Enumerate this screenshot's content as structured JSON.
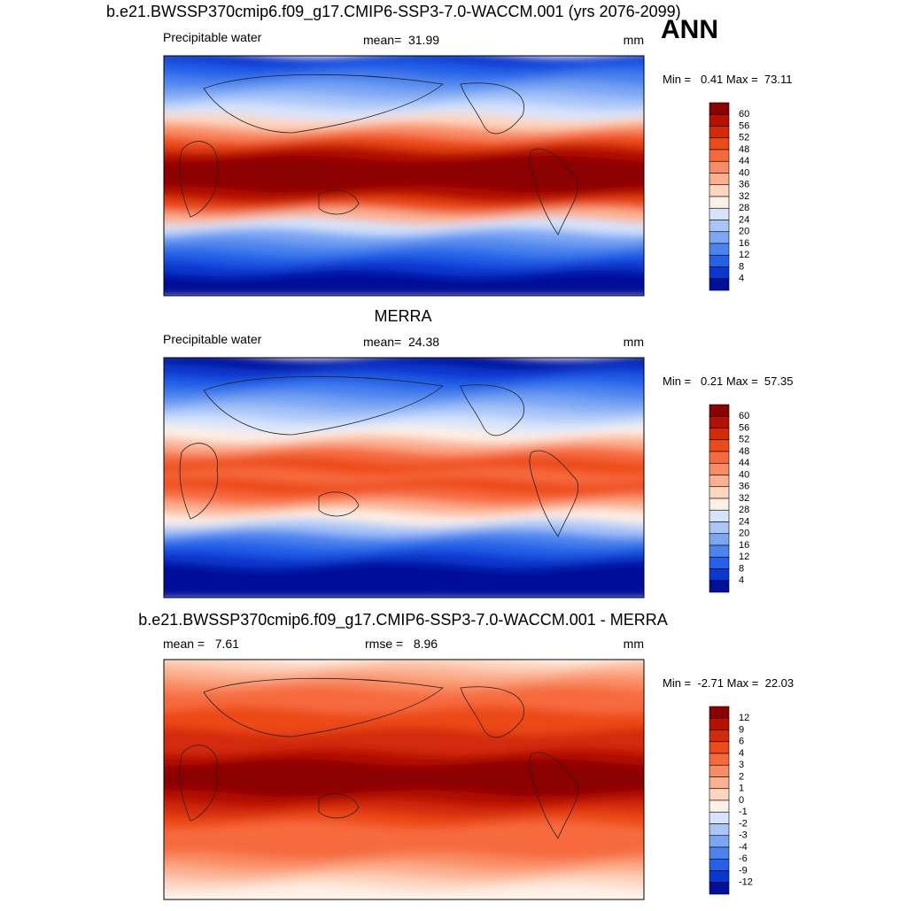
{
  "season": "ANN",
  "panels": [
    {
      "title": "b.e21.BWSSP370cmip6.f09_g17.CMIP6-SSP3-7.0-WACCM.001 (yrs 2076-2099)",
      "left_label": "Precipitable water",
      "center_label": "mean=  31.99",
      "units": "mm",
      "min_max": "Min =   0.41 Max =  73.11",
      "colorbar": {
        "levels": [
          60,
          56,
          52,
          48,
          44,
          40,
          36,
          32,
          28,
          24,
          20,
          16,
          12,
          8,
          4
        ],
        "colors": [
          "#8b0000",
          "#b51000",
          "#d42a08",
          "#ec4a18",
          "#f66a3c",
          "#f98c64",
          "#fbb090",
          "#fdd6bf",
          "#fdf0e6",
          "#d6e4fb",
          "#a8c6f8",
          "#7aa6f3",
          "#4c84ee",
          "#2460e8",
          "#0838d0",
          "#00109a"
        ]
      }
    },
    {
      "title": "MERRA",
      "left_label": "Precipitable water",
      "center_label": "mean=  24.38",
      "units": "mm",
      "min_max": "Min =   0.21 Max =  57.35",
      "colorbar": {
        "levels": [
          60,
          56,
          52,
          48,
          44,
          40,
          36,
          32,
          28,
          24,
          20,
          16,
          12,
          8,
          4
        ],
        "colors": [
          "#8b0000",
          "#b51000",
          "#d42a08",
          "#ec4a18",
          "#f66a3c",
          "#f98c64",
          "#fbb090",
          "#fdd6bf",
          "#fdf0e6",
          "#d6e4fb",
          "#a8c6f8",
          "#7aa6f3",
          "#4c84ee",
          "#2460e8",
          "#0838d0",
          "#00109a"
        ]
      }
    },
    {
      "title": "b.e21.BWSSP370cmip6.f09_g17.CMIP6-SSP3-7.0-WACCM.001 - MERRA",
      "left_label": "mean =   7.61",
      "center_label": "rmse =   8.96",
      "units": "mm",
      "min_max": "Min =  -2.71 Max =  22.03",
      "colorbar": {
        "levels": [
          12,
          9,
          6,
          4,
          3,
          2,
          1,
          0,
          -1,
          -2,
          -3,
          -4,
          -6,
          -9,
          -12
        ],
        "colors": [
          "#8b0000",
          "#b51000",
          "#d42a08",
          "#ec4a18",
          "#f66a3c",
          "#f98c64",
          "#fbb090",
          "#fdd6bf",
          "#fdf0e6",
          "#d6e4fb",
          "#a8c6f8",
          "#7aa6f3",
          "#4c84ee",
          "#2460e8",
          "#0838d0",
          "#00109a"
        ]
      }
    }
  ]
}
